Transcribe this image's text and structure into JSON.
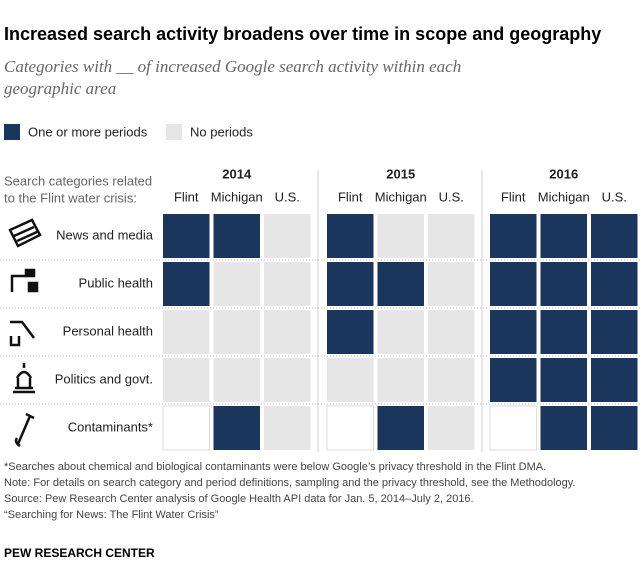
{
  "chart_data": {
    "type": "heatmap",
    "title": "Increased search activity broadens over time in scope and geography",
    "subtitle": [
      "Categories with __ of increased Google search activity within each",
      "geographic area"
    ],
    "legend": [
      {
        "name": "One or more periods",
        "color": "#1b365d",
        "value": 1
      },
      {
        "name": "No periods",
        "color": "#e6e6e6",
        "value": 0
      }
    ],
    "row_header": [
      "Search categories related",
      "to the Flint water crisis:"
    ],
    "groups": [
      "2014",
      "2015",
      "2016"
    ],
    "columns": [
      "Flint",
      "Michigan",
      "U.S."
    ],
    "rows": [
      "News and media",
      "Public health",
      "Personal health",
      "Politics and govt.",
      "Contaminants*"
    ],
    "values": [
      [
        [
          1,
          1,
          0
        ],
        [
          1,
          0,
          0
        ],
        [
          1,
          1,
          1
        ]
      ],
      [
        [
          1,
          0,
          0
        ],
        [
          1,
          1,
          0
        ],
        [
          1,
          1,
          1
        ]
      ],
      [
        [
          0,
          0,
          0
        ],
        [
          1,
          0,
          0
        ],
        [
          1,
          1,
          1
        ]
      ],
      [
        [
          0,
          0,
          0
        ],
        [
          0,
          0,
          0
        ],
        [
          1,
          1,
          1
        ]
      ],
      [
        [
          null,
          1,
          0
        ],
        [
          null,
          1,
          0
        ],
        [
          null,
          1,
          1
        ]
      ]
    ],
    "notes": [
      "*Searches about chemical and biological contaminants were below Google’s privacy threshold in the Flint DMA.",
      "Note: For details on search category and period definitions, sampling and the privacy threshold, see the Methodology.",
      "Source: Pew Research Center analysis of Google Health API data for Jan. 5, 2014–July 2, 2016.",
      "“Searching for News: The Flint Water Crisis”"
    ],
    "source_org": "PEW RESEARCH CENTER"
  }
}
